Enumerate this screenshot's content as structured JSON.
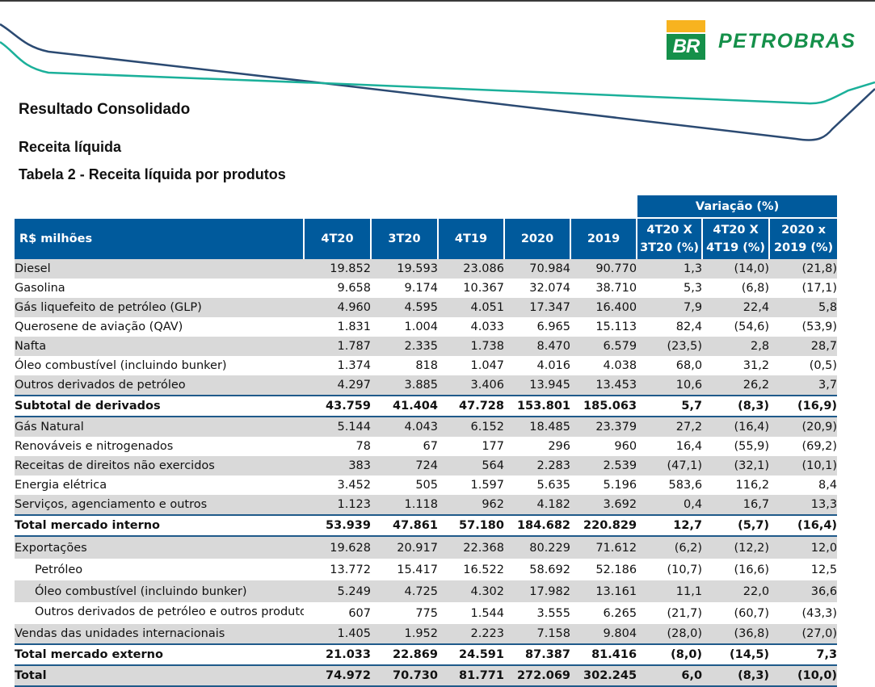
{
  "logo": {
    "mark": "BR",
    "name": "PETROBRAS",
    "colors": {
      "green": "#15904a",
      "yellow": "#f7b31f"
    }
  },
  "headings": {
    "section": "Resultado Consolidado",
    "subsection": "Receita líquida",
    "table_title": "Tabela 2 - Receita líquida por produtos"
  },
  "table": {
    "group_header": "Variação (%)",
    "columns": {
      "label": "R$ milhões",
      "c1": "4T20",
      "c2": "3T20",
      "c3": "4T19",
      "c4": "2020",
      "c5": "2019",
      "v1": [
        "4T20 X",
        "3T20 (%)"
      ],
      "v2": [
        "4T20 X",
        "4T19 (%)"
      ],
      "v3": [
        "2020 x",
        "2019 (%)"
      ]
    },
    "rows": [
      {
        "label": "Diesel",
        "values": [
          "19.852",
          "19.593",
          "23.086",
          "70.984",
          "90.770",
          "1,3",
          "(14,0)",
          "(21,8)"
        ]
      },
      {
        "label": "Gasolina",
        "values": [
          "9.658",
          "9.174",
          "10.367",
          "32.074",
          "38.710",
          "5,3",
          "(6,8)",
          "(17,1)"
        ]
      },
      {
        "label": "Gás liquefeito de petróleo (GLP)",
        "values": [
          "4.960",
          "4.595",
          "4.051",
          "17.347",
          "16.400",
          "7,9",
          "22,4",
          "5,8"
        ]
      },
      {
        "label": "Querosene de aviação (QAV)",
        "values": [
          "1.831",
          "1.004",
          "4.033",
          "6.965",
          "15.113",
          "82,4",
          "(54,6)",
          "(53,9)"
        ]
      },
      {
        "label": "Nafta",
        "values": [
          "1.787",
          "2.335",
          "1.738",
          "8.470",
          "6.579",
          "(23,5)",
          "2,8",
          "28,7"
        ]
      },
      {
        "label": "Óleo combustível (incluindo bunker)",
        "values": [
          "1.374",
          "818",
          "1.047",
          "4.016",
          "4.038",
          "68,0",
          "31,2",
          "(0,5)"
        ]
      },
      {
        "label": "Outros derivados de petróleo",
        "values": [
          "4.297",
          "3.885",
          "3.406",
          "13.945",
          "13.453",
          "10,6",
          "26,2",
          "3,7"
        ]
      },
      {
        "label": "Subtotal de derivados",
        "values": [
          "43.759",
          "41.404",
          "47.728",
          "153.801",
          "185.063",
          "5,7",
          "(8,3)",
          "(16,9)"
        ]
      },
      {
        "label": "Gás Natural",
        "values": [
          "5.144",
          "4.043",
          "6.152",
          "18.485",
          "23.379",
          "27,2",
          "(16,4)",
          "(20,9)"
        ]
      },
      {
        "label": "Renováveis e nitrogenados",
        "values": [
          "78",
          "67",
          "177",
          "296",
          "960",
          "16,4",
          "(55,9)",
          "(69,2)"
        ]
      },
      {
        "label": "Receitas de direitos não exercidos",
        "values": [
          "383",
          "724",
          "564",
          "2.283",
          "2.539",
          "(47,1)",
          "(32,1)",
          "(10,1)"
        ]
      },
      {
        "label": "Energia elétrica",
        "values": [
          "3.452",
          "505",
          "1.597",
          "5.635",
          "5.196",
          "583,6",
          "116,2",
          "8,4"
        ]
      },
      {
        "label": "Serviços, agenciamento e outros",
        "values": [
          "1.123",
          "1.118",
          "962",
          "4.182",
          "3.692",
          "0,4",
          "16,7",
          "13,3"
        ]
      },
      {
        "label": "Total mercado interno",
        "values": [
          "53.939",
          "47.861",
          "57.180",
          "184.682",
          "220.829",
          "12,7",
          "(5,7)",
          "(16,4)"
        ]
      },
      {
        "label": "Exportações",
        "values": [
          "19.628",
          "20.917",
          "22.368",
          "80.229",
          "71.612",
          "(6,2)",
          "(12,2)",
          "12,0"
        ]
      },
      {
        "label": "Petróleo",
        "values": [
          "13.772",
          "15.417",
          "16.522",
          "58.692",
          "52.186",
          "(10,7)",
          "(16,6)",
          "12,5"
        ]
      },
      {
        "label": "Óleo combustível (incluindo bunker)",
        "values": [
          "5.249",
          "4.725",
          "4.302",
          "17.982",
          "13.161",
          "11,1",
          "22,0",
          "36,6"
        ]
      },
      {
        "label": "Outros derivados de petróleo e outros produtos",
        "values": [
          "607",
          "775",
          "1.544",
          "3.555",
          "6.265",
          "(21,7)",
          "(60,7)",
          "(43,3)"
        ]
      },
      {
        "label": "Vendas das unidades internacionais",
        "values": [
          "1.405",
          "1.952",
          "2.223",
          "7.158",
          "9.804",
          "(28,0)",
          "(36,8)",
          "(27,0)"
        ]
      },
      {
        "label": "Total mercado externo",
        "values": [
          "21.033",
          "22.869",
          "24.591",
          "87.387",
          "81.416",
          "(8,0)",
          "(14,5)",
          "7,3"
        ]
      },
      {
        "label": "Total",
        "values": [
          "74.972",
          "70.730",
          "81.771",
          "272.069",
          "302.245",
          "6,0",
          "(8,3)",
          "(10,0)"
        ]
      }
    ],
    "colors": {
      "header_bg": "#005a9c",
      "row_gray": "#d9d9d9",
      "rule": "#1f5a8a"
    }
  }
}
